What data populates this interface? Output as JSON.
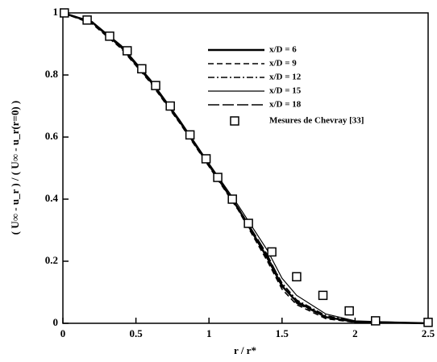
{
  "chart_data": {
    "type": "line",
    "xlabel": "r / r*",
    "ylabel": "( U∞ - u_r ) / ( U∞ - u_r(r=0) )",
    "xlim": [
      0,
      2.5
    ],
    "ylim": [
      0,
      1
    ],
    "xticks": [
      0,
      0.5,
      1,
      1.5,
      2,
      2.5
    ],
    "yticks": [
      0,
      0.2,
      0.4,
      0.6,
      0.8,
      1
    ],
    "series": [
      {
        "name": "x/D = 6",
        "color": "#000000",
        "line_style": "solid",
        "x": [
          0,
          0.2,
          0.4,
          0.6,
          0.8,
          1.0,
          1.2,
          1.4,
          1.5,
          1.6,
          1.8,
          2.0,
          2.5
        ],
        "values": [
          1.0,
          0.97,
          0.89,
          0.78,
          0.65,
          0.51,
          0.37,
          0.21,
          0.12,
          0.07,
          0.02,
          0.005,
          0
        ]
      },
      {
        "name": "x/D = 9",
        "color": "#000000",
        "line_style": "dashed",
        "x": [
          0,
          0.2,
          0.4,
          0.6,
          0.8,
          1.0,
          1.2,
          1.4,
          1.5,
          1.6,
          1.8,
          2.0,
          2.5
        ],
        "values": [
          1.0,
          0.965,
          0.885,
          0.775,
          0.645,
          0.505,
          0.365,
          0.2,
          0.11,
          0.06,
          0.015,
          0.003,
          0
        ]
      },
      {
        "name": "x/D = 12",
        "color": "#000000",
        "line_style": "dashdot",
        "x": [
          0,
          0.2,
          0.4,
          0.6,
          0.8,
          1.0,
          1.2,
          1.4,
          1.5,
          1.6,
          1.8,
          2.0,
          2.5
        ],
        "values": [
          1.0,
          0.968,
          0.888,
          0.778,
          0.648,
          0.508,
          0.368,
          0.215,
          0.13,
          0.075,
          0.025,
          0.006,
          0
        ]
      },
      {
        "name": "x/D = 15",
        "color": "#000000",
        "line_style": "solid",
        "x": [
          0,
          0.2,
          0.4,
          0.6,
          0.8,
          1.0,
          1.2,
          1.4,
          1.5,
          1.6,
          1.8,
          2.0,
          2.5
        ],
        "values": [
          1.0,
          0.972,
          0.895,
          0.785,
          0.655,
          0.515,
          0.38,
          0.235,
          0.145,
          0.09,
          0.03,
          0.008,
          0
        ]
      },
      {
        "name": "x/D = 18",
        "color": "#000000",
        "line_style": "longdash",
        "x": [
          0,
          0.2,
          0.4,
          0.6,
          0.8,
          1.0,
          1.2,
          1.4,
          1.5,
          1.6,
          1.8,
          2.0,
          2.5
        ],
        "values": [
          1.0,
          0.969,
          0.89,
          0.78,
          0.65,
          0.51,
          0.372,
          0.22,
          0.125,
          0.065,
          0.02,
          0.004,
          0
        ]
      },
      {
        "name": "Mesures de Chevray [33]",
        "color": "#000000",
        "line_style": "square-markers",
        "x": [
          0.01,
          0.166,
          0.32,
          0.44,
          0.54,
          0.635,
          0.735,
          0.87,
          0.98,
          1.06,
          1.16,
          1.27,
          1.43,
          1.6,
          1.78,
          1.96,
          2.14,
          2.5
        ],
        "values": [
          1.0,
          0.977,
          0.925,
          0.878,
          0.82,
          0.766,
          0.7,
          0.607,
          0.53,
          0.47,
          0.4,
          0.322,
          0.23,
          0.15,
          0.09,
          0.04,
          0.008,
          0.003
        ]
      }
    ]
  }
}
